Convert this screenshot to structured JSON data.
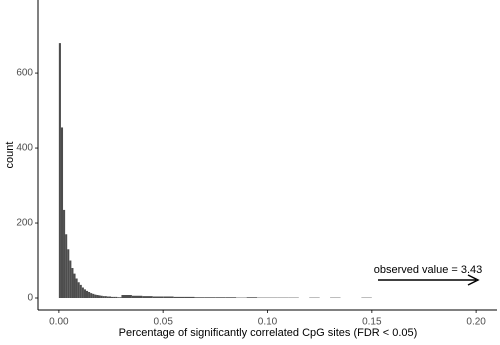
{
  "chart_data": {
    "type": "histogram",
    "x_label": "Percentage of significantly correlated CpG sites (FDR < 0.05)",
    "y_label": "count",
    "bins": [
      0,
      0.001,
      0.002,
      0.003,
      0.004,
      0.005,
      0.006,
      0.007,
      0.008,
      0.009,
      0.01,
      0.011,
      0.012,
      0.013,
      0.014,
      0.015,
      0.016,
      0.017,
      0.018,
      0.019,
      0.02,
      0.021,
      0.022,
      0.023,
      0.024,
      0.025,
      0.026,
      0.027,
      0.028,
      0.029,
      0.03,
      0.035,
      0.04,
      0.045,
      0.05,
      0.055,
      0.06,
      0.065,
      0.07,
      0.075,
      0.08,
      0.085,
      0.09,
      0.095,
      0.1,
      0.105,
      0.11,
      0.115,
      0.12,
      0.125,
      0.13,
      0.135,
      0.14,
      0.145,
      0.15,
      0.155,
      0.16
    ],
    "values": [
      680,
      455,
      235,
      170,
      130,
      100,
      80,
      65,
      52,
      42,
      35,
      28,
      23,
      19,
      16,
      13,
      11,
      9,
      8,
      7,
      6,
      5,
      5,
      4,
      4,
      3,
      3,
      3,
      2,
      2,
      8,
      6,
      5,
      4,
      4,
      3,
      3,
      2,
      2,
      2,
      2,
      1,
      2,
      1,
      1,
      1,
      1,
      0,
      1,
      0,
      1,
      0,
      0,
      1,
      0,
      0
    ],
    "color": "#4d4d4d",
    "xlim": [
      -0.01,
      0.21
    ],
    "ylim": [
      -32,
      795
    ],
    "xticks": [
      {
        "value": 0,
        "label": "0.00"
      },
      0.05,
      {
        "value": 0.1,
        "label": "0.10"
      },
      0.15,
      {
        "value": 0.2,
        "label": "0.20"
      }
    ],
    "yticks": [
      0,
      200,
      400,
      600
    ],
    "grid": false,
    "annotation": "observed value = 3.43"
  }
}
